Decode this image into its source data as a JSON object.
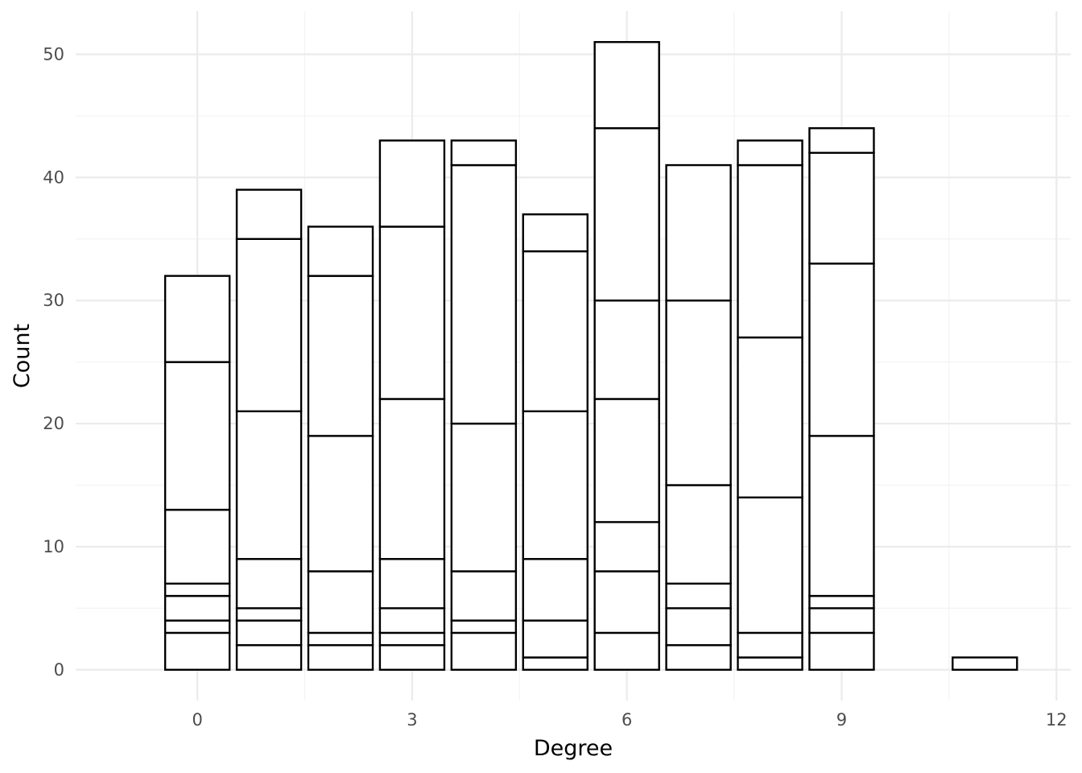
{
  "chart_data": {
    "type": "bar",
    "stacked": true,
    "xlabel": "Degree",
    "ylabel": "Count",
    "xlim": [
      -1.7,
      12.2
    ],
    "ylim": [
      -2.5,
      53.5
    ],
    "x_ticks": [
      0,
      3,
      6,
      9,
      12
    ],
    "y_ticks": [
      0,
      10,
      20,
      30,
      40,
      50
    ],
    "grid": true,
    "fill_color": "#ffffff",
    "outline_color": "#000000",
    "bars": [
      {
        "x": 0,
        "boundaries": [
          0,
          3,
          4,
          6,
          7,
          13,
          25,
          32
        ]
      },
      {
        "x": 1,
        "boundaries": [
          0,
          2,
          4,
          5,
          9,
          21,
          35,
          39
        ]
      },
      {
        "x": 2,
        "boundaries": [
          0,
          2,
          3,
          8,
          19,
          32,
          36
        ]
      },
      {
        "x": 3,
        "boundaries": [
          0,
          2,
          3,
          5,
          9,
          22,
          36,
          43
        ]
      },
      {
        "x": 4,
        "boundaries": [
          0,
          3,
          4,
          8,
          20,
          41,
          43
        ]
      },
      {
        "x": 5,
        "boundaries": [
          0,
          1,
          4,
          9,
          21,
          34,
          37
        ]
      },
      {
        "x": 6,
        "boundaries": [
          0,
          3,
          8,
          12,
          22,
          30,
          44,
          51
        ]
      },
      {
        "x": 7,
        "boundaries": [
          0,
          2,
          5,
          7,
          15,
          30,
          41
        ]
      },
      {
        "x": 8,
        "boundaries": [
          0,
          1,
          3,
          14,
          27,
          41,
          43
        ]
      },
      {
        "x": 9,
        "boundaries": [
          0,
          3,
          5,
          6,
          19,
          33,
          42,
          44
        ]
      },
      {
        "x": 11,
        "boundaries": [
          0,
          1
        ]
      }
    ]
  }
}
